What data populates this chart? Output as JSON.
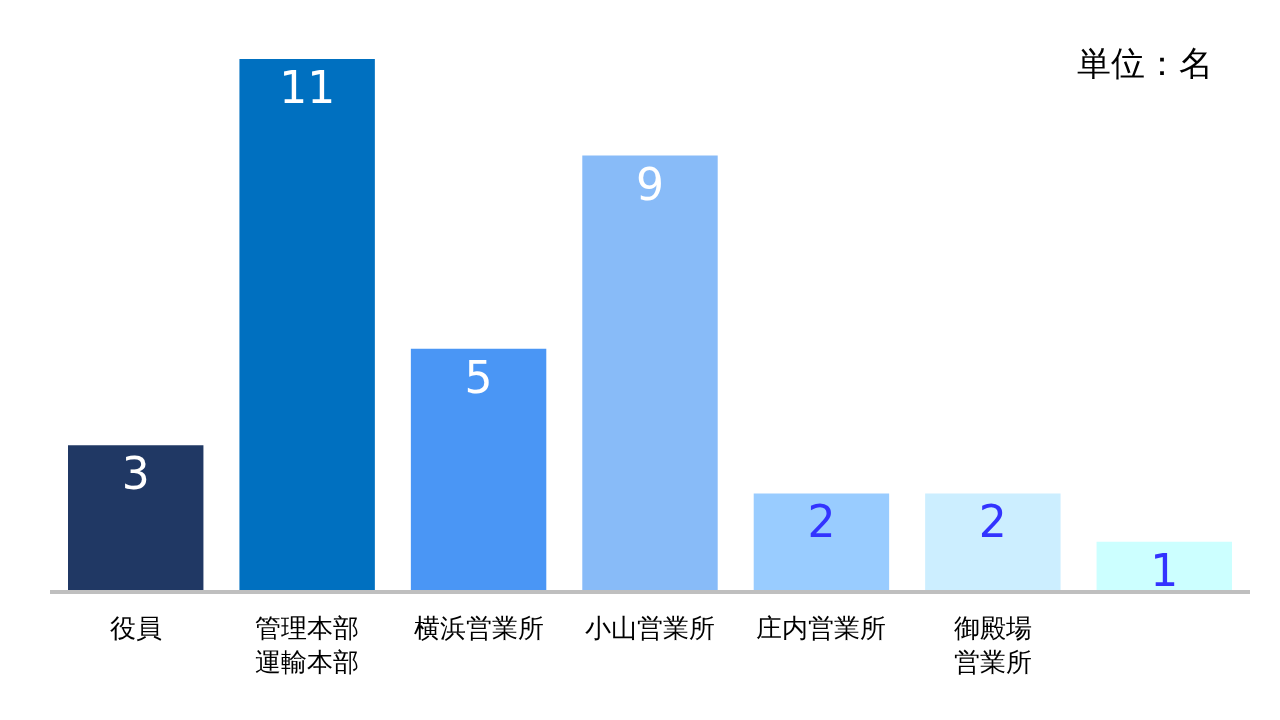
{
  "chart_data": {
    "type": "bar",
    "categories": [
      "役員",
      "管理本部運輸本部",
      "横浜営業所",
      "小山営業所",
      "庄内営業所",
      "御殿場営業所",
      null
    ],
    "values": [
      3,
      11,
      5,
      9,
      2,
      2,
      1
    ],
    "colors": [
      "#203864",
      "#0070c0",
      "#4a96f5",
      "#88bbf8",
      "#99ccff",
      "#cceeff",
      "#ccffff"
    ],
    "ylim": [
      0,
      11
    ],
    "tick_labels": "x",
    "data_labels": true,
    "annotations": [
      "単位：名"
    ]
  }
}
